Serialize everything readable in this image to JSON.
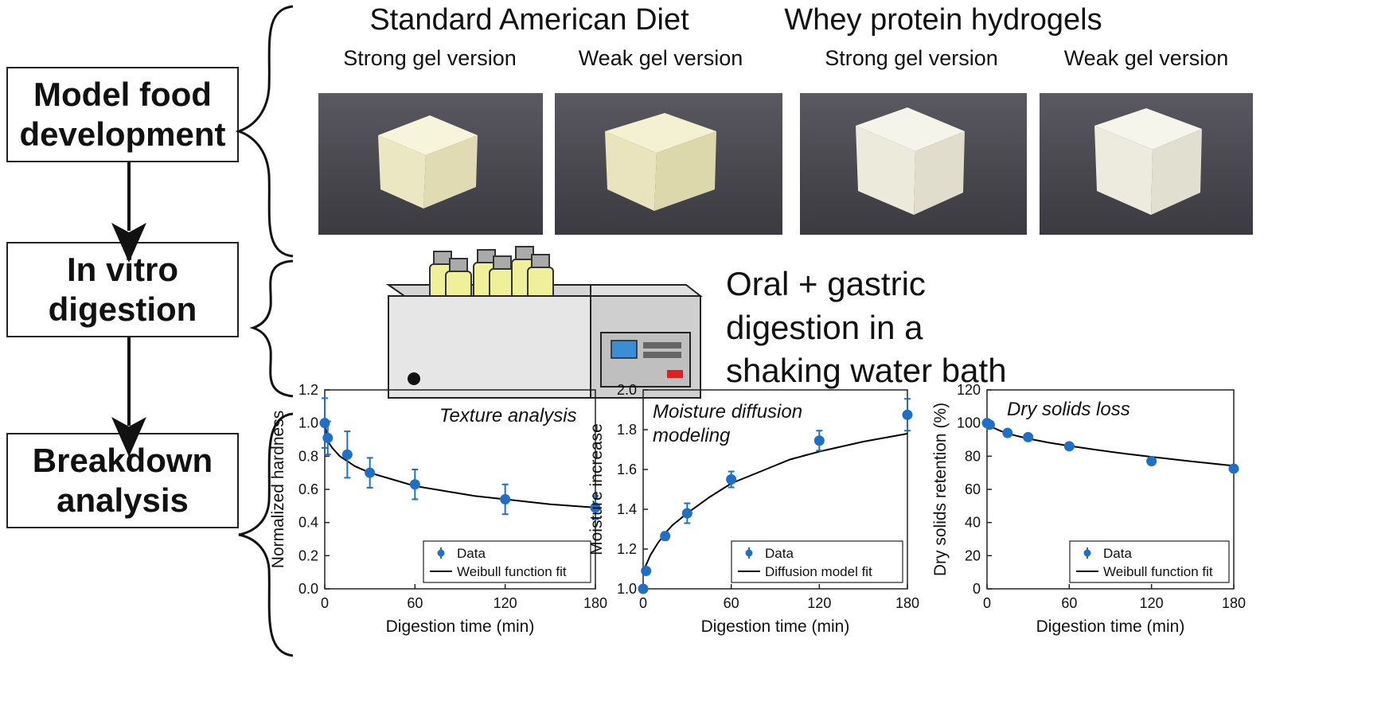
{
  "stages": [
    {
      "label": "Model food\ndevelopment"
    },
    {
      "label": "In vitro\ndigestion"
    },
    {
      "label": "Breakdown\nanalysis"
    }
  ],
  "groups": [
    {
      "title": "Standard American Diet",
      "samples": [
        "Strong gel version",
        "Weak gel version"
      ]
    },
    {
      "title": "Whey protein hydrogels",
      "samples": [
        "Strong gel version",
        "Weak gel version"
      ]
    }
  ],
  "digestion_text": "Oral + gastric\ndigestion in a\nshaking water bath",
  "colors": {
    "data": "#1f6fc5",
    "fit": "#000000",
    "bottle_liquid": "#f0f09a",
    "bath": "#e8e8e8"
  },
  "chart_data": [
    {
      "type": "scatter",
      "title": "Texture analysis",
      "xlabel": "Digestion time (min)",
      "ylabel": "Normalized hardness",
      "xlim": [
        0,
        180
      ],
      "ylim": [
        0,
        1.2
      ],
      "xticks": [
        "0",
        "60",
        "120",
        "180"
      ],
      "yticks": [
        "0.0",
        "0.2",
        "0.4",
        "0.6",
        "0.8",
        "1.0",
        "1.2"
      ],
      "legend_position": "bottom-right",
      "series": [
        {
          "name": "Data",
          "x": [
            0,
            2,
            15,
            30,
            60,
            120,
            180
          ],
          "y": [
            1.0,
            0.91,
            0.81,
            0.7,
            0.63,
            0.54,
            0.49
          ],
          "err": [
            0.15,
            0.1,
            0.14,
            0.09,
            0.09,
            0.09,
            0.07
          ]
        },
        {
          "name": "Weibull function fit",
          "x": [
            0,
            2,
            5,
            10,
            15,
            20,
            30,
            45,
            60,
            80,
            100,
            120,
            150,
            180
          ],
          "y": [
            1.0,
            0.89,
            0.85,
            0.8,
            0.77,
            0.74,
            0.7,
            0.66,
            0.62,
            0.59,
            0.56,
            0.54,
            0.51,
            0.49
          ]
        }
      ]
    },
    {
      "type": "scatter",
      "title": "Moisture diffusion\nmodeling",
      "xlabel": "Digestion time (min)",
      "ylabel": "Moisture increase",
      "xlim": [
        0,
        180
      ],
      "ylim": [
        1.0,
        2.0
      ],
      "xticks": [
        "0",
        "60",
        "120",
        "180"
      ],
      "yticks": [
        "1.0",
        "1.2",
        "1.4",
        "1.6",
        "1.8",
        "2.0"
      ],
      "legend_position": "bottom-right",
      "series": [
        {
          "name": "Data",
          "x": [
            0,
            2,
            15,
            30,
            60,
            120,
            180
          ],
          "y": [
            1.0,
            1.09,
            1.265,
            1.38,
            1.55,
            1.745,
            1.875
          ],
          "err": [
            0,
            0,
            0.02,
            0.05,
            0.04,
            0.05,
            0.08
          ]
        },
        {
          "name": "Diffusion model fit",
          "x": [
            0,
            2,
            5,
            10,
            15,
            20,
            30,
            45,
            60,
            80,
            100,
            120,
            150,
            180
          ],
          "y": [
            1.09,
            1.12,
            1.17,
            1.23,
            1.28,
            1.32,
            1.38,
            1.46,
            1.53,
            1.59,
            1.65,
            1.69,
            1.74,
            1.78
          ]
        }
      ]
    },
    {
      "type": "scatter",
      "title": "Dry solids loss",
      "xlabel": "Digestion time (min)",
      "ylabel": "Dry solids retention (%)",
      "xlim": [
        0,
        180
      ],
      "ylim": [
        0,
        120
      ],
      "xticks": [
        "0",
        "60",
        "120",
        "180"
      ],
      "yticks": [
        "0",
        "20",
        "40",
        "60",
        "80",
        "100",
        "120"
      ],
      "legend_position": "bottom-right",
      "series": [
        {
          "name": "Data",
          "x": [
            0,
            2,
            15,
            30,
            60,
            120,
            180
          ],
          "y": [
            100,
            99,
            94,
            91.5,
            86,
            77,
            72.5
          ],
          "err": [
            0,
            0,
            0,
            0,
            0,
            0,
            0
          ]
        },
        {
          "name": "Weibull function fit",
          "x": [
            0,
            2,
            5,
            10,
            15,
            20,
            30,
            45,
            60,
            80,
            100,
            120,
            150,
            180
          ],
          "y": [
            100,
            98.5,
            97,
            95.2,
            93.8,
            92.6,
            90.6,
            88.2,
            86.2,
            83.8,
            81.6,
            79.6,
            76.8,
            74.2
          ]
        }
      ]
    }
  ]
}
